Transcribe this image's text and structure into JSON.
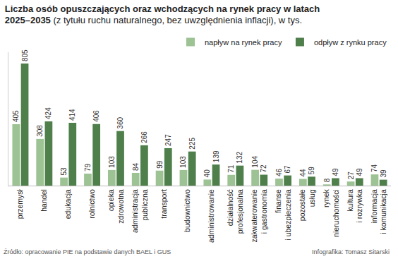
{
  "chart_data": {
    "type": "bar",
    "title": "Liczba osób opuszczających oraz wchodzących na rynek pracy w latach 2025–2035",
    "subtitle": "(z tytułu ruchu naturalnego, bez uwzględnienia inflacji), w tys.",
    "categories": [
      "przemysł",
      "handel",
      "edukacja",
      "rolnictwo",
      "opieka zdrowotna",
      "administracja publiczna",
      "transport",
      "budownictwo",
      "administrowanie",
      "działalność profesjonalna",
      "zakwaterowanie i gastronomia",
      "finanse i ubezpieczenia",
      "pozostałe usług",
      "rynek nieruchomości",
      "kultura i rozrywka",
      "informacja i komunikacja"
    ],
    "series": [
      {
        "name": "napływ na rynek pracy",
        "color": "#9dc293",
        "values": [
          405,
          308,
          53,
          79,
          103,
          84,
          99,
          103,
          40,
          71,
          104,
          46,
          44,
          8,
          27,
          74
        ]
      },
      {
        "name": "odpływ z rynku pracy",
        "color": "#4f7f4b",
        "values": [
          805,
          424,
          414,
          406,
          360,
          266,
          247,
          225,
          139,
          132,
          72,
          67,
          59,
          49,
          49,
          39
        ]
      }
    ],
    "ylim": [
      0,
      880
    ],
    "tick_labels": "x",
    "data_labels": true,
    "legend": "top right",
    "annotations": [
      "Źródło: opracowanie PIE na podstawie danych BAEL i GUS",
      "Infografika: Tomasz Sitarski"
    ]
  }
}
